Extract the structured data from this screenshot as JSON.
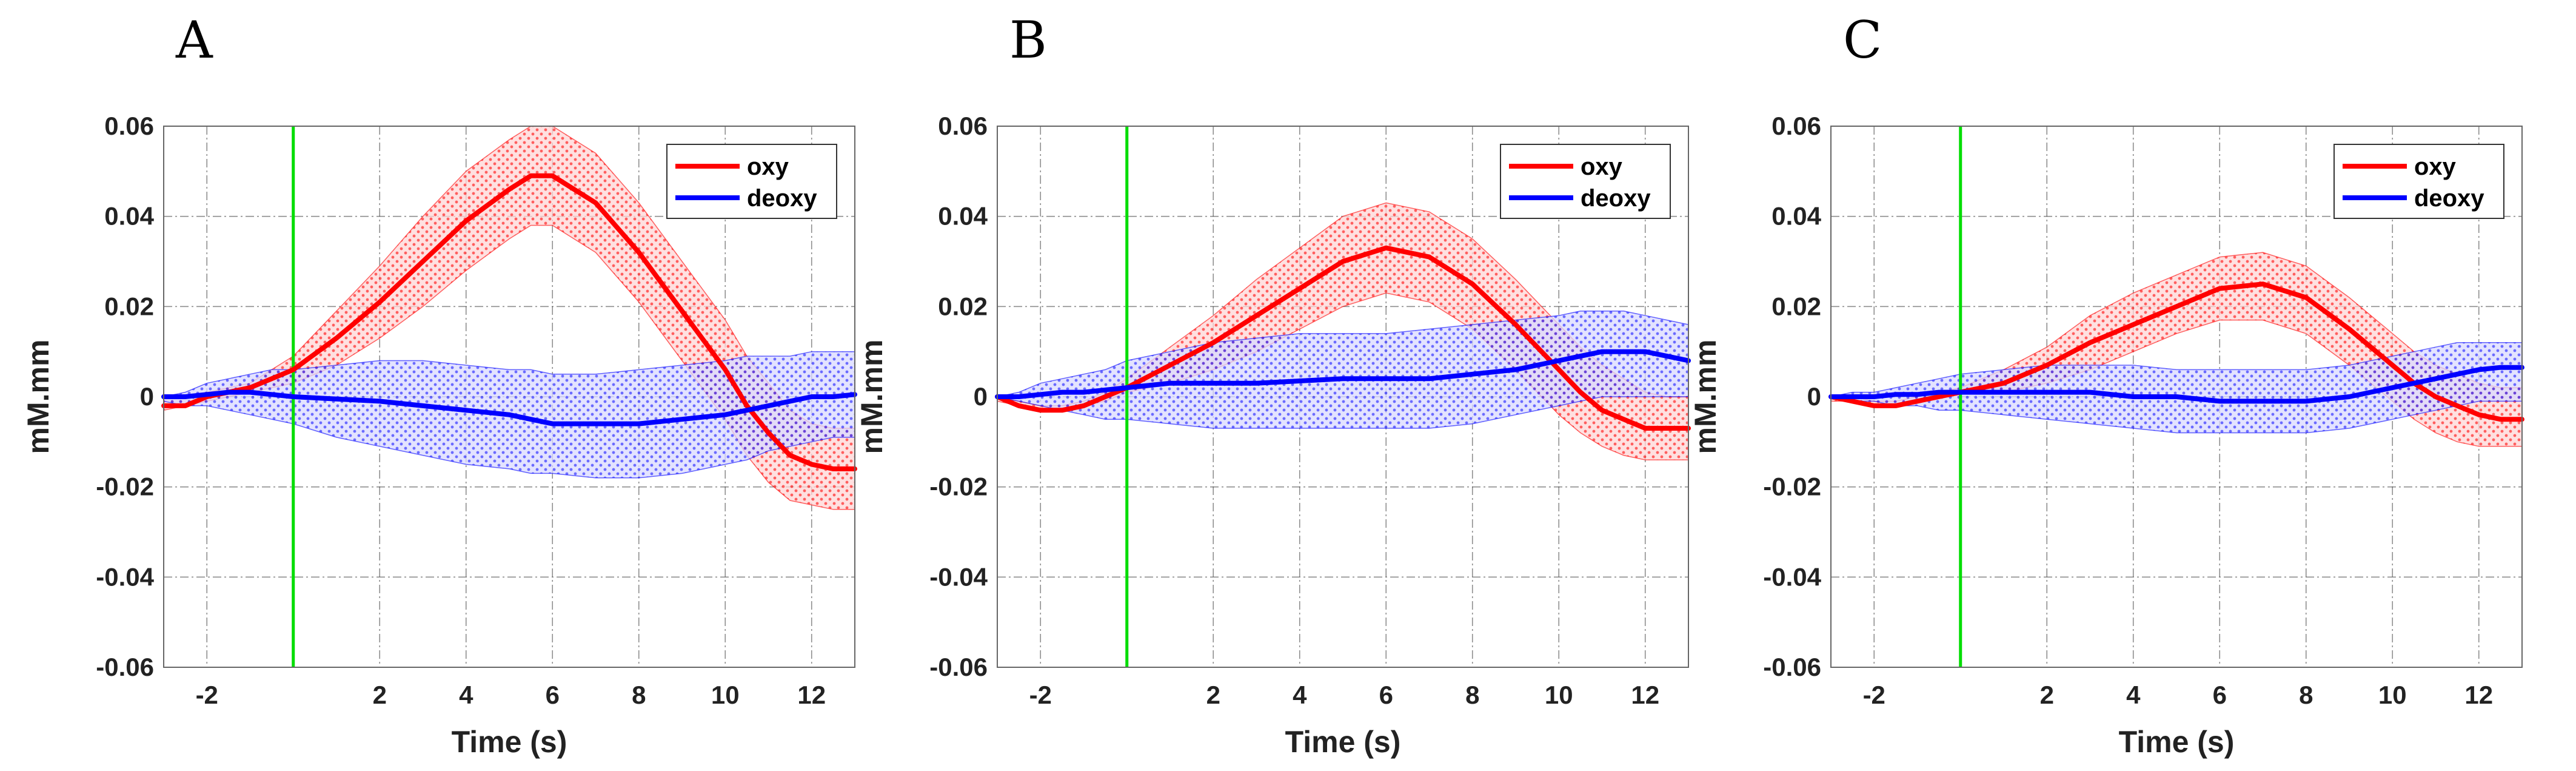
{
  "colors": {
    "oxy": "#ff0000",
    "deoxy": "#0000ff",
    "stimulus_marker": "#00dd00",
    "grid": "#333333"
  },
  "chart_data": [
    {
      "type": "line",
      "panel_label": "A",
      "xlabel": "Time (s)",
      "ylabel": "mM.mm",
      "xlim": [
        -3,
        13
      ],
      "ylim": [
        -0.06,
        0.06
      ],
      "xticks": [
        -2,
        2,
        4,
        6,
        8,
        10,
        12
      ],
      "xtick_labels": [
        "-2",
        "2",
        "4",
        "6",
        "8",
        "10",
        "12"
      ],
      "yticks": [
        -0.06,
        -0.04,
        -0.02,
        0,
        0.02,
        0.04,
        0.06
      ],
      "ytick_labels": [
        "-0.06",
        "-0.04",
        "-0.02",
        "0",
        "0.02",
        "0.04",
        "0.06"
      ],
      "grid": true,
      "legend_position": "top-right",
      "stimulus_x": 0,
      "x": [
        -3,
        -2.5,
        -2,
        -1.5,
        -1,
        -0.5,
        0,
        1,
        2,
        3,
        4,
        5,
        5.5,
        6,
        7,
        8,
        9,
        10,
        10.5,
        11,
        11.5,
        12,
        12.5,
        13
      ],
      "series": [
        {
          "name": "oxy",
          "values": [
            -0.002,
            -0.002,
            0,
            0.001,
            0.002,
            0.004,
            0.006,
            0.013,
            0.021,
            0.03,
            0.039,
            0.046,
            0.049,
            0.049,
            0.043,
            0.032,
            0.019,
            0.006,
            -0.002,
            -0.008,
            -0.013,
            -0.015,
            -0.016,
            -0.016
          ],
          "lower": [
            -0.003,
            -0.002,
            -0.001,
            0,
            0.001,
            0.002,
            0.003,
            0.007,
            0.013,
            0.02,
            0.028,
            0.035,
            0.038,
            0.038,
            0.032,
            0.021,
            0.008,
            -0.005,
            -0.013,
            -0.019,
            -0.023,
            -0.024,
            -0.025,
            -0.025
          ],
          "upper": [
            0,
            0,
            0.001,
            0.002,
            0.003,
            0.006,
            0.009,
            0.019,
            0.029,
            0.04,
            0.05,
            0.057,
            0.06,
            0.06,
            0.054,
            0.043,
            0.03,
            0.017,
            0.009,
            0.003,
            -0.003,
            -0.006,
            -0.007,
            -0.007
          ]
        },
        {
          "name": "deoxy",
          "values": [
            0,
            0,
            0.0005,
            0.001,
            0.001,
            0.0005,
            0,
            -0.0005,
            -0.001,
            -0.002,
            -0.003,
            -0.004,
            -0.005,
            -0.006,
            -0.006,
            -0.006,
            -0.005,
            -0.004,
            -0.003,
            -0.002,
            -0.001,
            0,
            0,
            0.0005
          ],
          "lower": [
            -0.001,
            -0.002,
            -0.002,
            -0.003,
            -0.004,
            -0.005,
            -0.006,
            -0.009,
            -0.011,
            -0.013,
            -0.015,
            -0.016,
            -0.017,
            -0.017,
            -0.018,
            -0.018,
            -0.017,
            -0.015,
            -0.014,
            -0.012,
            -0.011,
            -0.01,
            -0.009,
            -0.009
          ],
          "upper": [
            0,
            0.001,
            0.003,
            0.004,
            0.005,
            0.006,
            0.006,
            0.007,
            0.008,
            0.008,
            0.007,
            0.006,
            0.006,
            0.005,
            0.005,
            0.006,
            0.007,
            0.008,
            0.009,
            0.009,
            0.009,
            0.01,
            0.01,
            0.01
          ]
        }
      ]
    },
    {
      "type": "line",
      "panel_label": "B",
      "xlabel": "Time (s)",
      "ylabel": "mM.mm",
      "xlim": [
        -3,
        13
      ],
      "ylim": [
        -0.06,
        0.06
      ],
      "xticks": [
        -2,
        2,
        4,
        6,
        8,
        10,
        12
      ],
      "xtick_labels": [
        "-2",
        "2",
        "4",
        "6",
        "8",
        "10",
        "12"
      ],
      "yticks": [
        -0.06,
        -0.04,
        -0.02,
        0,
        0.02,
        0.04,
        0.06
      ],
      "ytick_labels": [
        "-0.06",
        "-0.04",
        "-0.02",
        "0",
        "0.02",
        "0.04",
        "0.06"
      ],
      "grid": true,
      "legend_position": "top-right",
      "stimulus_x": 0,
      "x": [
        -3,
        -2.5,
        -2,
        -1.5,
        -1,
        -0.5,
        0,
        1,
        2,
        3,
        4,
        5,
        6,
        7,
        8,
        9,
        10,
        10.5,
        11,
        11.5,
        12,
        12.5,
        13
      ],
      "series": [
        {
          "name": "oxy",
          "values": [
            0,
            -0.002,
            -0.003,
            -0.003,
            -0.002,
            0,
            0.002,
            0.007,
            0.012,
            0.018,
            0.024,
            0.03,
            0.033,
            0.031,
            0.025,
            0.016,
            0.006,
            0.001,
            -0.003,
            -0.005,
            -0.007,
            -0.007,
            -0.007
          ],
          "lower": [
            -0.001,
            -0.002,
            -0.003,
            -0.003,
            -0.002,
            -0.001,
            0.001,
            0.003,
            0.006,
            0.01,
            0.015,
            0.02,
            0.023,
            0.021,
            0.015,
            0.006,
            -0.004,
            -0.008,
            -0.011,
            -0.013,
            -0.014,
            -0.014,
            -0.014
          ],
          "upper": [
            0,
            -0.001,
            -0.002,
            -0.002,
            -0.001,
            0.001,
            0.004,
            0.011,
            0.018,
            0.026,
            0.033,
            0.04,
            0.043,
            0.041,
            0.035,
            0.026,
            0.016,
            0.011,
            0.007,
            0.004,
            0.001,
            0,
            0
          ]
        },
        {
          "name": "deoxy",
          "values": [
            0,
            0,
            0.0005,
            0.001,
            0.001,
            0.0015,
            0.002,
            0.003,
            0.003,
            0.003,
            0.0035,
            0.004,
            0.004,
            0.004,
            0.005,
            0.006,
            0.008,
            0.009,
            0.01,
            0.01,
            0.01,
            0.009,
            0.008
          ],
          "lower": [
            0,
            -0.001,
            -0.002,
            -0.003,
            -0.004,
            -0.005,
            -0.005,
            -0.006,
            -0.007,
            -0.007,
            -0.007,
            -0.007,
            -0.007,
            -0.007,
            -0.006,
            -0.004,
            -0.002,
            -0.001,
            0,
            0,
            0,
            0,
            0
          ],
          "upper": [
            0,
            0.001,
            0.003,
            0.004,
            0.005,
            0.006,
            0.008,
            0.01,
            0.012,
            0.013,
            0.014,
            0.014,
            0.014,
            0.015,
            0.016,
            0.017,
            0.018,
            0.019,
            0.019,
            0.019,
            0.018,
            0.017,
            0.016
          ]
        }
      ]
    },
    {
      "type": "line",
      "panel_label": "C",
      "xlabel": "Time (s)",
      "ylabel": "mM.mm",
      "xlim": [
        -3,
        13
      ],
      "ylim": [
        -0.06,
        0.06
      ],
      "xticks": [
        -2,
        2,
        4,
        6,
        8,
        10,
        12
      ],
      "xtick_labels": [
        "-2",
        "2",
        "4",
        "6",
        "8",
        "10",
        "12"
      ],
      "yticks": [
        -0.06,
        -0.04,
        -0.02,
        0,
        0.02,
        0.04,
        0.06
      ],
      "ytick_labels": [
        "-0.06",
        "-0.04",
        "-0.02",
        "0",
        "0.02",
        "0.04",
        "0.06"
      ],
      "grid": true,
      "legend_position": "top-right",
      "stimulus_x": 0,
      "x": [
        -3,
        -2.5,
        -2,
        -1.5,
        -1,
        -0.5,
        0,
        1,
        2,
        3,
        4,
        5,
        6,
        7,
        8,
        9,
        10,
        10.5,
        11,
        11.5,
        12,
        12.5,
        13
      ],
      "series": [
        {
          "name": "oxy",
          "values": [
            0,
            -0.001,
            -0.002,
            -0.002,
            -0.001,
            0,
            0.001,
            0.003,
            0.007,
            0.012,
            0.016,
            0.02,
            0.024,
            0.025,
            0.022,
            0.015,
            0.007,
            0.003,
            0,
            -0.002,
            -0.004,
            -0.005,
            -0.005
          ],
          "lower": [
            -0.001,
            -0.001,
            -0.002,
            -0.002,
            -0.001,
            0,
            0.001,
            0.001,
            0.003,
            0.006,
            0.01,
            0.014,
            0.017,
            0.017,
            0.014,
            0.007,
            -0.001,
            -0.005,
            -0.008,
            -0.01,
            -0.011,
            -0.011,
            -0.011
          ],
          "upper": [
            0,
            0,
            -0.001,
            -0.001,
            0,
            0.001,
            0.002,
            0.006,
            0.011,
            0.018,
            0.023,
            0.027,
            0.031,
            0.032,
            0.029,
            0.022,
            0.014,
            0.01,
            0.007,
            0.005,
            0.003,
            0.002,
            0.002
          ]
        },
        {
          "name": "deoxy",
          "values": [
            0,
            0,
            0,
            0.0005,
            0.0005,
            0.001,
            0.001,
            0.001,
            0.001,
            0.001,
            0,
            0,
            -0.001,
            -0.001,
            -0.001,
            0,
            0.002,
            0.003,
            0.004,
            0.005,
            0.006,
            0.0065,
            0.0065
          ],
          "lower": [
            0,
            -0.001,
            -0.001,
            -0.002,
            -0.002,
            -0.003,
            -0.003,
            -0.004,
            -0.005,
            -0.006,
            -0.007,
            -0.008,
            -0.008,
            -0.008,
            -0.008,
            -0.007,
            -0.005,
            -0.004,
            -0.003,
            -0.002,
            -0.001,
            -0.001,
            -0.001
          ],
          "upper": [
            0,
            0.001,
            0.001,
            0.002,
            0.003,
            0.004,
            0.005,
            0.006,
            0.007,
            0.007,
            0.007,
            0.006,
            0.006,
            0.006,
            0.006,
            0.007,
            0.009,
            0.01,
            0.011,
            0.012,
            0.012,
            0.012,
            0.012
          ]
        }
      ]
    }
  ]
}
